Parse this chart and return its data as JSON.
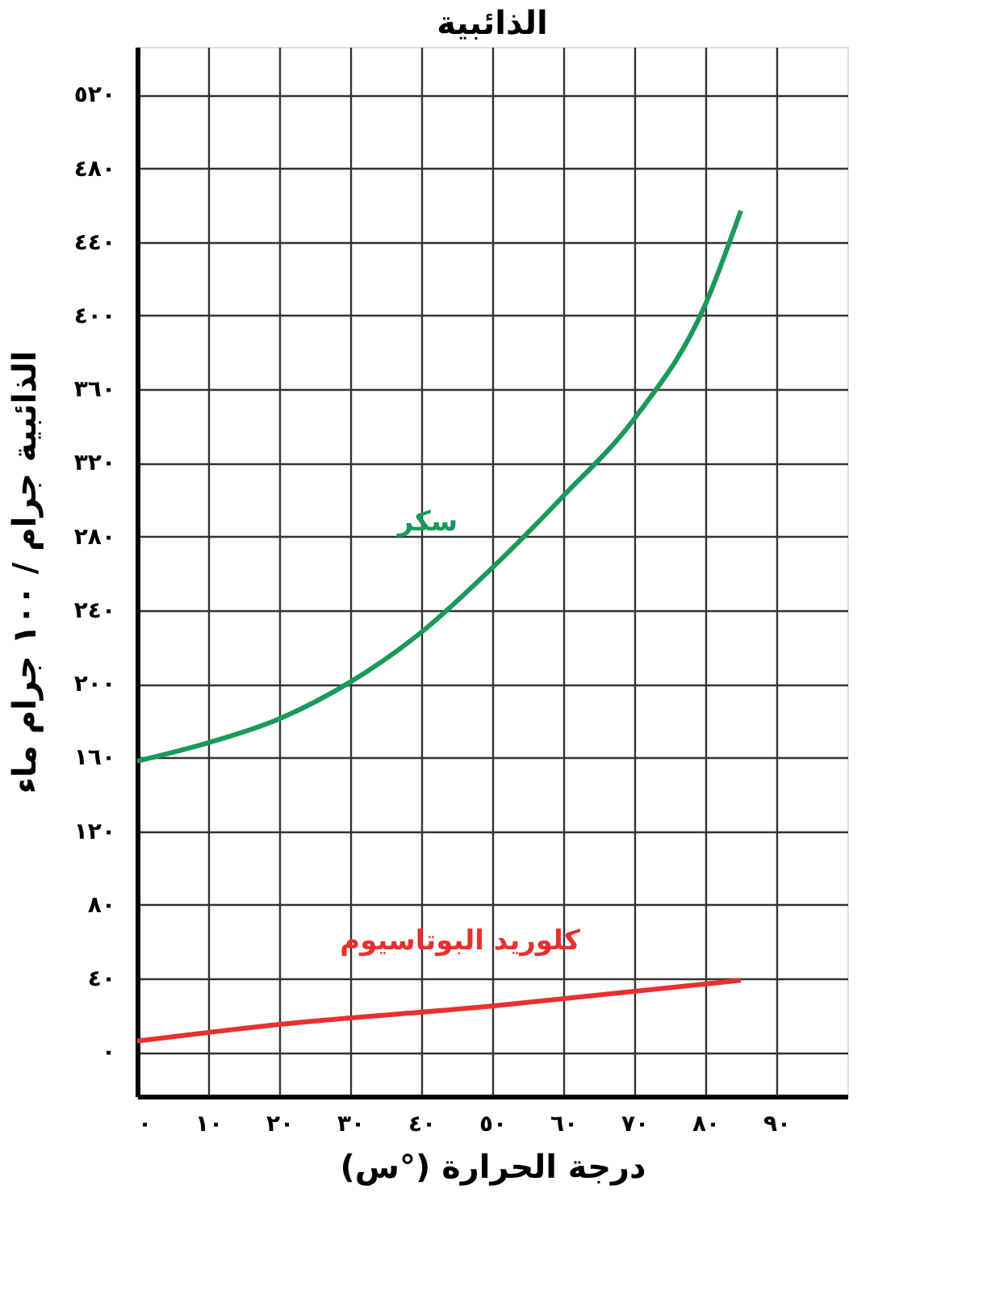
{
  "chart_data": {
    "type": "line",
    "title": "الذائبية",
    "xlabel": "درجة الحرارة (°س)",
    "ylabel": "الذائبية جرام / ١٠٠ جرام ماء",
    "xlim": [
      0,
      100
    ],
    "ylim": [
      -24,
      546
    ],
    "xticks": [
      {
        "value": 0,
        "label": "٠"
      },
      {
        "value": 10,
        "label": "١٠"
      },
      {
        "value": 20,
        "label": "٢٠"
      },
      {
        "value": 30,
        "label": "٣٠"
      },
      {
        "value": 40,
        "label": "٤٠"
      },
      {
        "value": 50,
        "label": "٥٠"
      },
      {
        "value": 60,
        "label": "٦٠"
      },
      {
        "value": 70,
        "label": "٧٠"
      },
      {
        "value": 80,
        "label": "٨٠"
      },
      {
        "value": 90,
        "label": "٩٠"
      }
    ],
    "yticks": [
      {
        "value": 0,
        "label": "٠"
      },
      {
        "value": 40,
        "label": "٤٠"
      },
      {
        "value": 80,
        "label": "٨٠"
      },
      {
        "value": 120,
        "label": "١٢٠"
      },
      {
        "value": 160,
        "label": "١٦٠"
      },
      {
        "value": 200,
        "label": "٢٠٠"
      },
      {
        "value": 240,
        "label": "٢٤٠"
      },
      {
        "value": 280,
        "label": "٢٨٠"
      },
      {
        "value": 320,
        "label": "٣٢٠"
      },
      {
        "value": 360,
        "label": "٣٦٠"
      },
      {
        "value": 400,
        "label": "٤٠٠"
      },
      {
        "value": 440,
        "label": "٤٤٠"
      },
      {
        "value": 480,
        "label": "٤٨٠"
      },
      {
        "value": 520,
        "label": "٥٢٠"
      }
    ],
    "grid": true,
    "legend": false,
    "marker": "none",
    "line_style": "solid",
    "series": [
      {
        "name": "سكر",
        "color": "#1a9a5a",
        "x": [
          0,
          10,
          20,
          30,
          40,
          50,
          60,
          70,
          80,
          85
        ],
        "values": [
          158,
          168,
          181,
          201,
          228,
          263,
          302,
          344,
          406,
          457
        ]
      },
      {
        "name": "كلوريد البوتاسيوم",
        "color": "#e8302f",
        "x": [
          0,
          20,
          50,
          85
        ],
        "values": [
          6,
          15,
          25,
          39
        ]
      }
    ]
  }
}
